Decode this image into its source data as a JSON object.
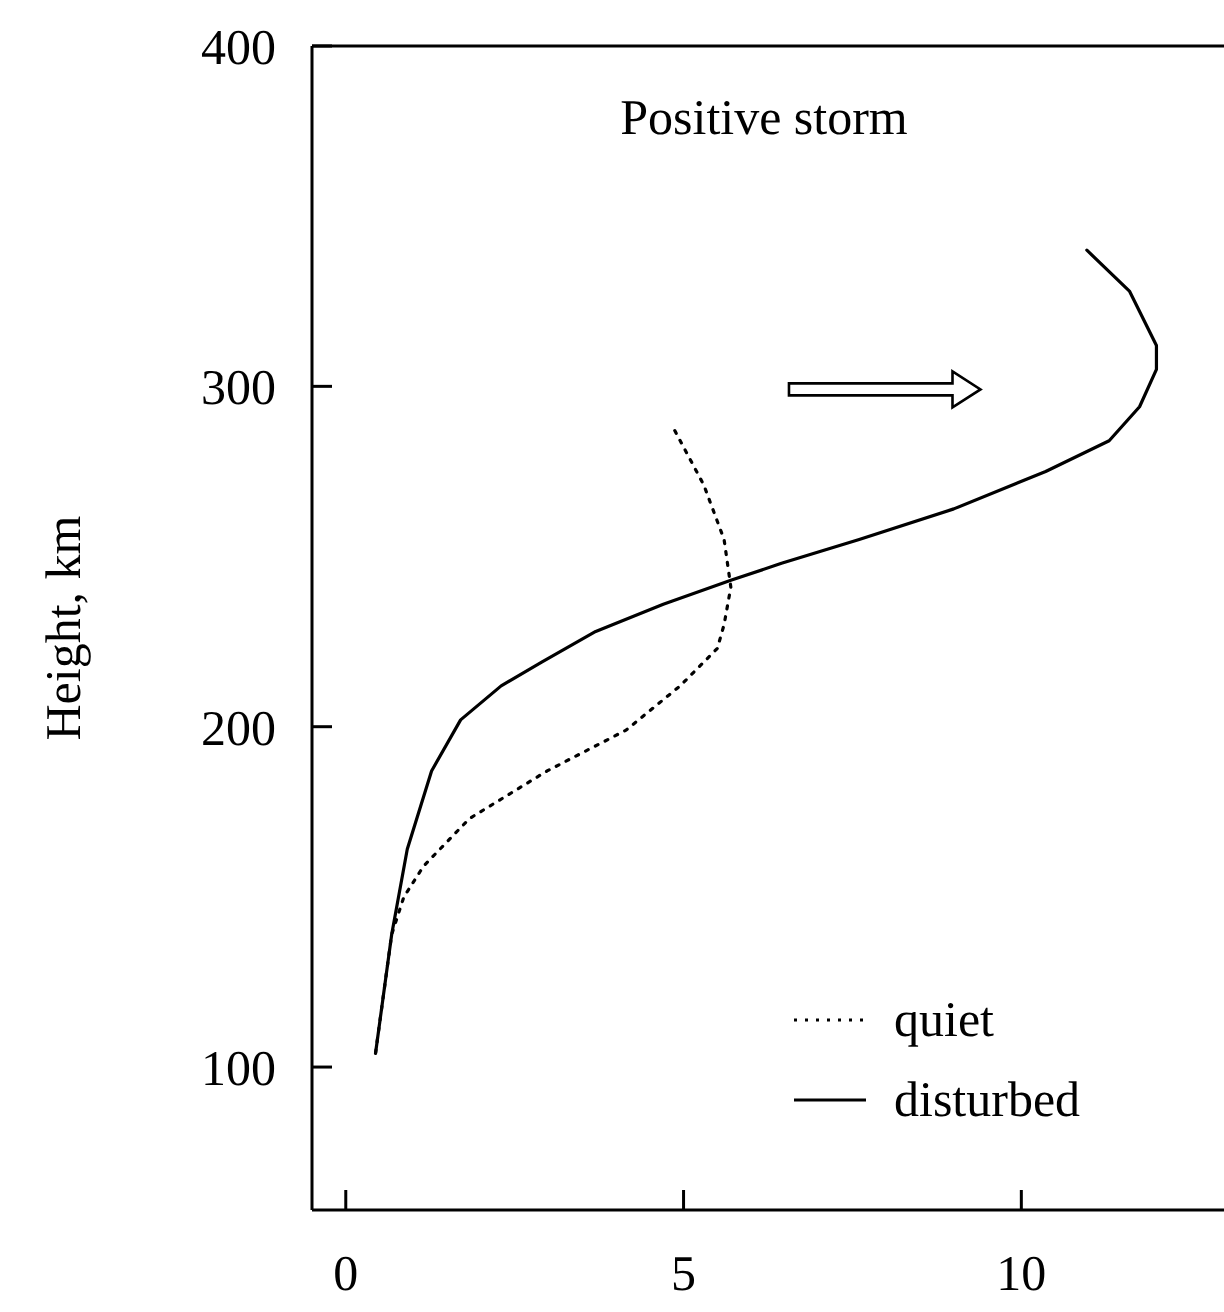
{
  "chart_data": {
    "type": "line",
    "title": "Positive storm",
    "ylabel": "Height, km",
    "xlim": [
      -0.5,
      13
    ],
    "ylim": [
      58,
      400
    ],
    "xticks": [
      0,
      5,
      10
    ],
    "yticks": [
      100,
      200,
      300,
      400
    ],
    "grid": false,
    "legend": "bottom right",
    "series": [
      {
        "name": "quiet",
        "color": "#000000",
        "line_style": "dotted",
        "x": [
          4.87,
          5.3,
          5.6,
          5.7,
          5.6,
          5.5,
          4.95,
          4.15,
          2.98,
          1.83,
          1.15,
          0.86,
          0.68,
          0.44
        ],
        "values": [
          287,
          271,
          255,
          241,
          230,
          223,
          212,
          199,
          187,
          173,
          159,
          150,
          139,
          104
        ]
      },
      {
        "name": "disturbed",
        "color": "#000000",
        "line_style": "solid",
        "x": [
          10.97,
          11.6,
          12.0,
          12.0,
          11.75,
          11.3,
          10.36,
          9.0,
          7.6,
          6.45,
          5.7,
          4.7,
          3.7,
          2.9,
          2.3,
          1.7,
          1.27,
          0.91,
          0.68,
          0.44
        ],
        "values": [
          340,
          328,
          312,
          305,
          294,
          284,
          275,
          264,
          255,
          248,
          243,
          236,
          228,
          219,
          212,
          202,
          187,
          164,
          139,
          104
        ]
      }
    ]
  }
}
